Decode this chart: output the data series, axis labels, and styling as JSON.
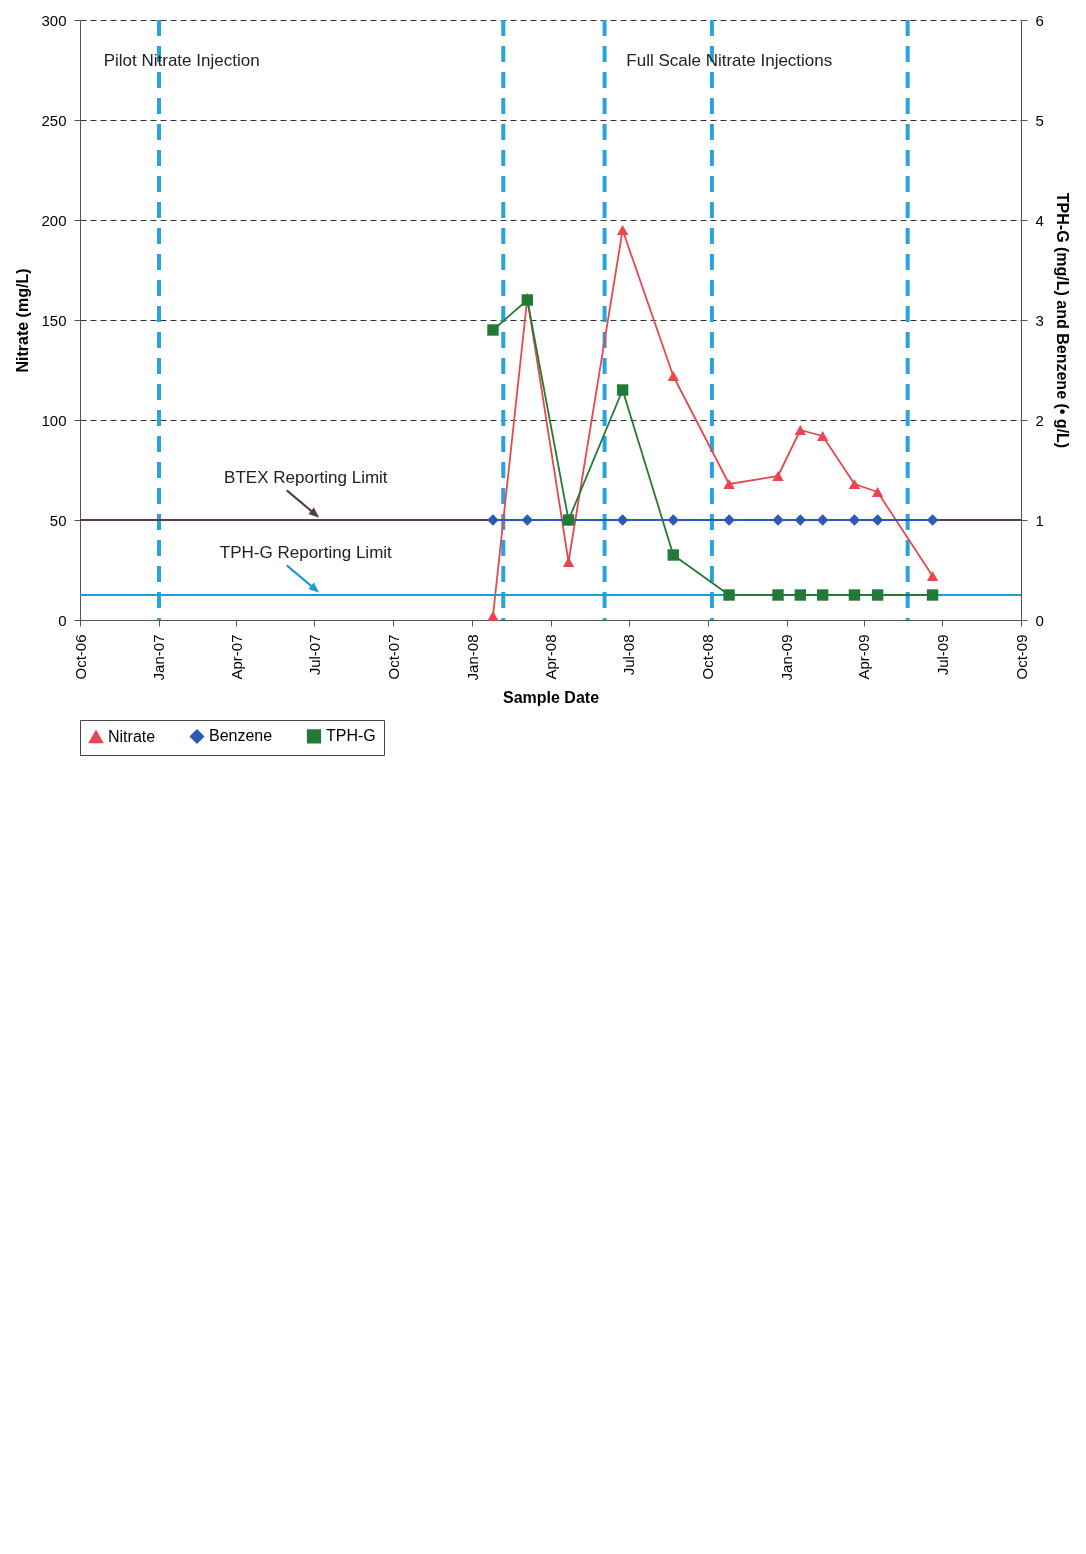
{
  "chart_data": {
    "type": "line",
    "xlabel": "Sample Date",
    "ylabel": "Nitrate (mg/L)",
    "y2label": "TPH-G (mg/L) and Benzene (• g/L)",
    "x": [
      "2008-01-25",
      "2008-03-05",
      "2008-04-22",
      "2008-06-24",
      "2008-08-22",
      "2008-10-26",
      "2008-12-22",
      "2009-01-17",
      "2009-02-12",
      "2009-03-21",
      "2009-04-17",
      "2009-06-20"
    ],
    "series": [
      {
        "name": "Nitrate",
        "color": "#e8474f",
        "marker": "triangle",
        "values": [
          2,
          161,
          29,
          195,
          122,
          68,
          72,
          95,
          92,
          68,
          64,
          22
        ]
      },
      {
        "name": "Benzene",
        "color": "#2b59b8",
        "marker": "diamond",
        "axis": "y2",
        "values": [
          1,
          1,
          1,
          1,
          1,
          1,
          1,
          1,
          1,
          1,
          1,
          1
        ]
      },
      {
        "name": "TPH-G",
        "color": "#237a36",
        "marker": "square",
        "axis": "y2",
        "values": [
          2.9,
          3.2,
          1.0,
          2.3,
          0.65,
          0.25,
          0.25,
          0.25,
          0.25,
          0.25,
          0.25,
          0.25
        ]
      }
    ],
    "xlim": [
      "2006-10-01",
      "2009-10-01"
    ],
    "xticks": [
      {
        "value": "2006-10-01",
        "label": "Oct-06"
      },
      {
        "value": "2007-01-01",
        "label": "Jan-07"
      },
      {
        "value": "2007-04-01",
        "label": "Apr-07"
      },
      {
        "value": "2007-07-01",
        "label": "Jul-07"
      },
      {
        "value": "2007-10-01",
        "label": "Oct-07"
      },
      {
        "value": "2008-01-01",
        "label": "Jan-08"
      },
      {
        "value": "2008-04-01",
        "label": "Apr-08"
      },
      {
        "value": "2008-07-01",
        "label": "Jul-08"
      },
      {
        "value": "2008-10-01",
        "label": "Oct-08"
      },
      {
        "value": "2009-01-01",
        "label": "Jan-09"
      },
      {
        "value": "2009-04-01",
        "label": "Apr-09"
      },
      {
        "value": "2009-07-01",
        "label": "Jul-09"
      },
      {
        "value": "2009-10-01",
        "label": "Oct-09"
      }
    ],
    "ylim": [
      0,
      300
    ],
    "yticks": [
      0,
      50,
      100,
      150,
      200,
      250,
      300
    ],
    "y2lim": [
      0,
      6
    ],
    "y2ticks": [
      0,
      1,
      2,
      3,
      4,
      5,
      6
    ],
    "ref_lines": [
      {
        "axis": "x",
        "value": "2007-01-01",
        "color": "#29a3e0",
        "line_style": "dashed"
      },
      {
        "axis": "x",
        "value": "2008-02-06",
        "color": "#29a3e0",
        "line_style": "dashed"
      },
      {
        "axis": "x",
        "value": "2008-06-03",
        "color": "#29a3e0",
        "line_style": "dashed"
      },
      {
        "axis": "x",
        "value": "2008-10-06",
        "color": "#29a3e0",
        "line_style": "dashed"
      },
      {
        "axis": "x",
        "value": "2009-05-22",
        "color": "#29a3e0",
        "line_style": "dashed"
      },
      {
        "axis": "y2",
        "value": 1,
        "label": "BTEX Reporting Limit",
        "color": "#5a3d42",
        "line_style": "solid"
      },
      {
        "axis": "y2",
        "value": 0.25,
        "label": "TPH-G Reporting Limit",
        "color": "#1e9ad6",
        "line_style": "solid"
      }
    ],
    "annotations": [
      "Pilot Nitrate Injection",
      "Full Scale Nitrate Injections"
    ],
    "grid": "y",
    "legend": "bottom"
  }
}
